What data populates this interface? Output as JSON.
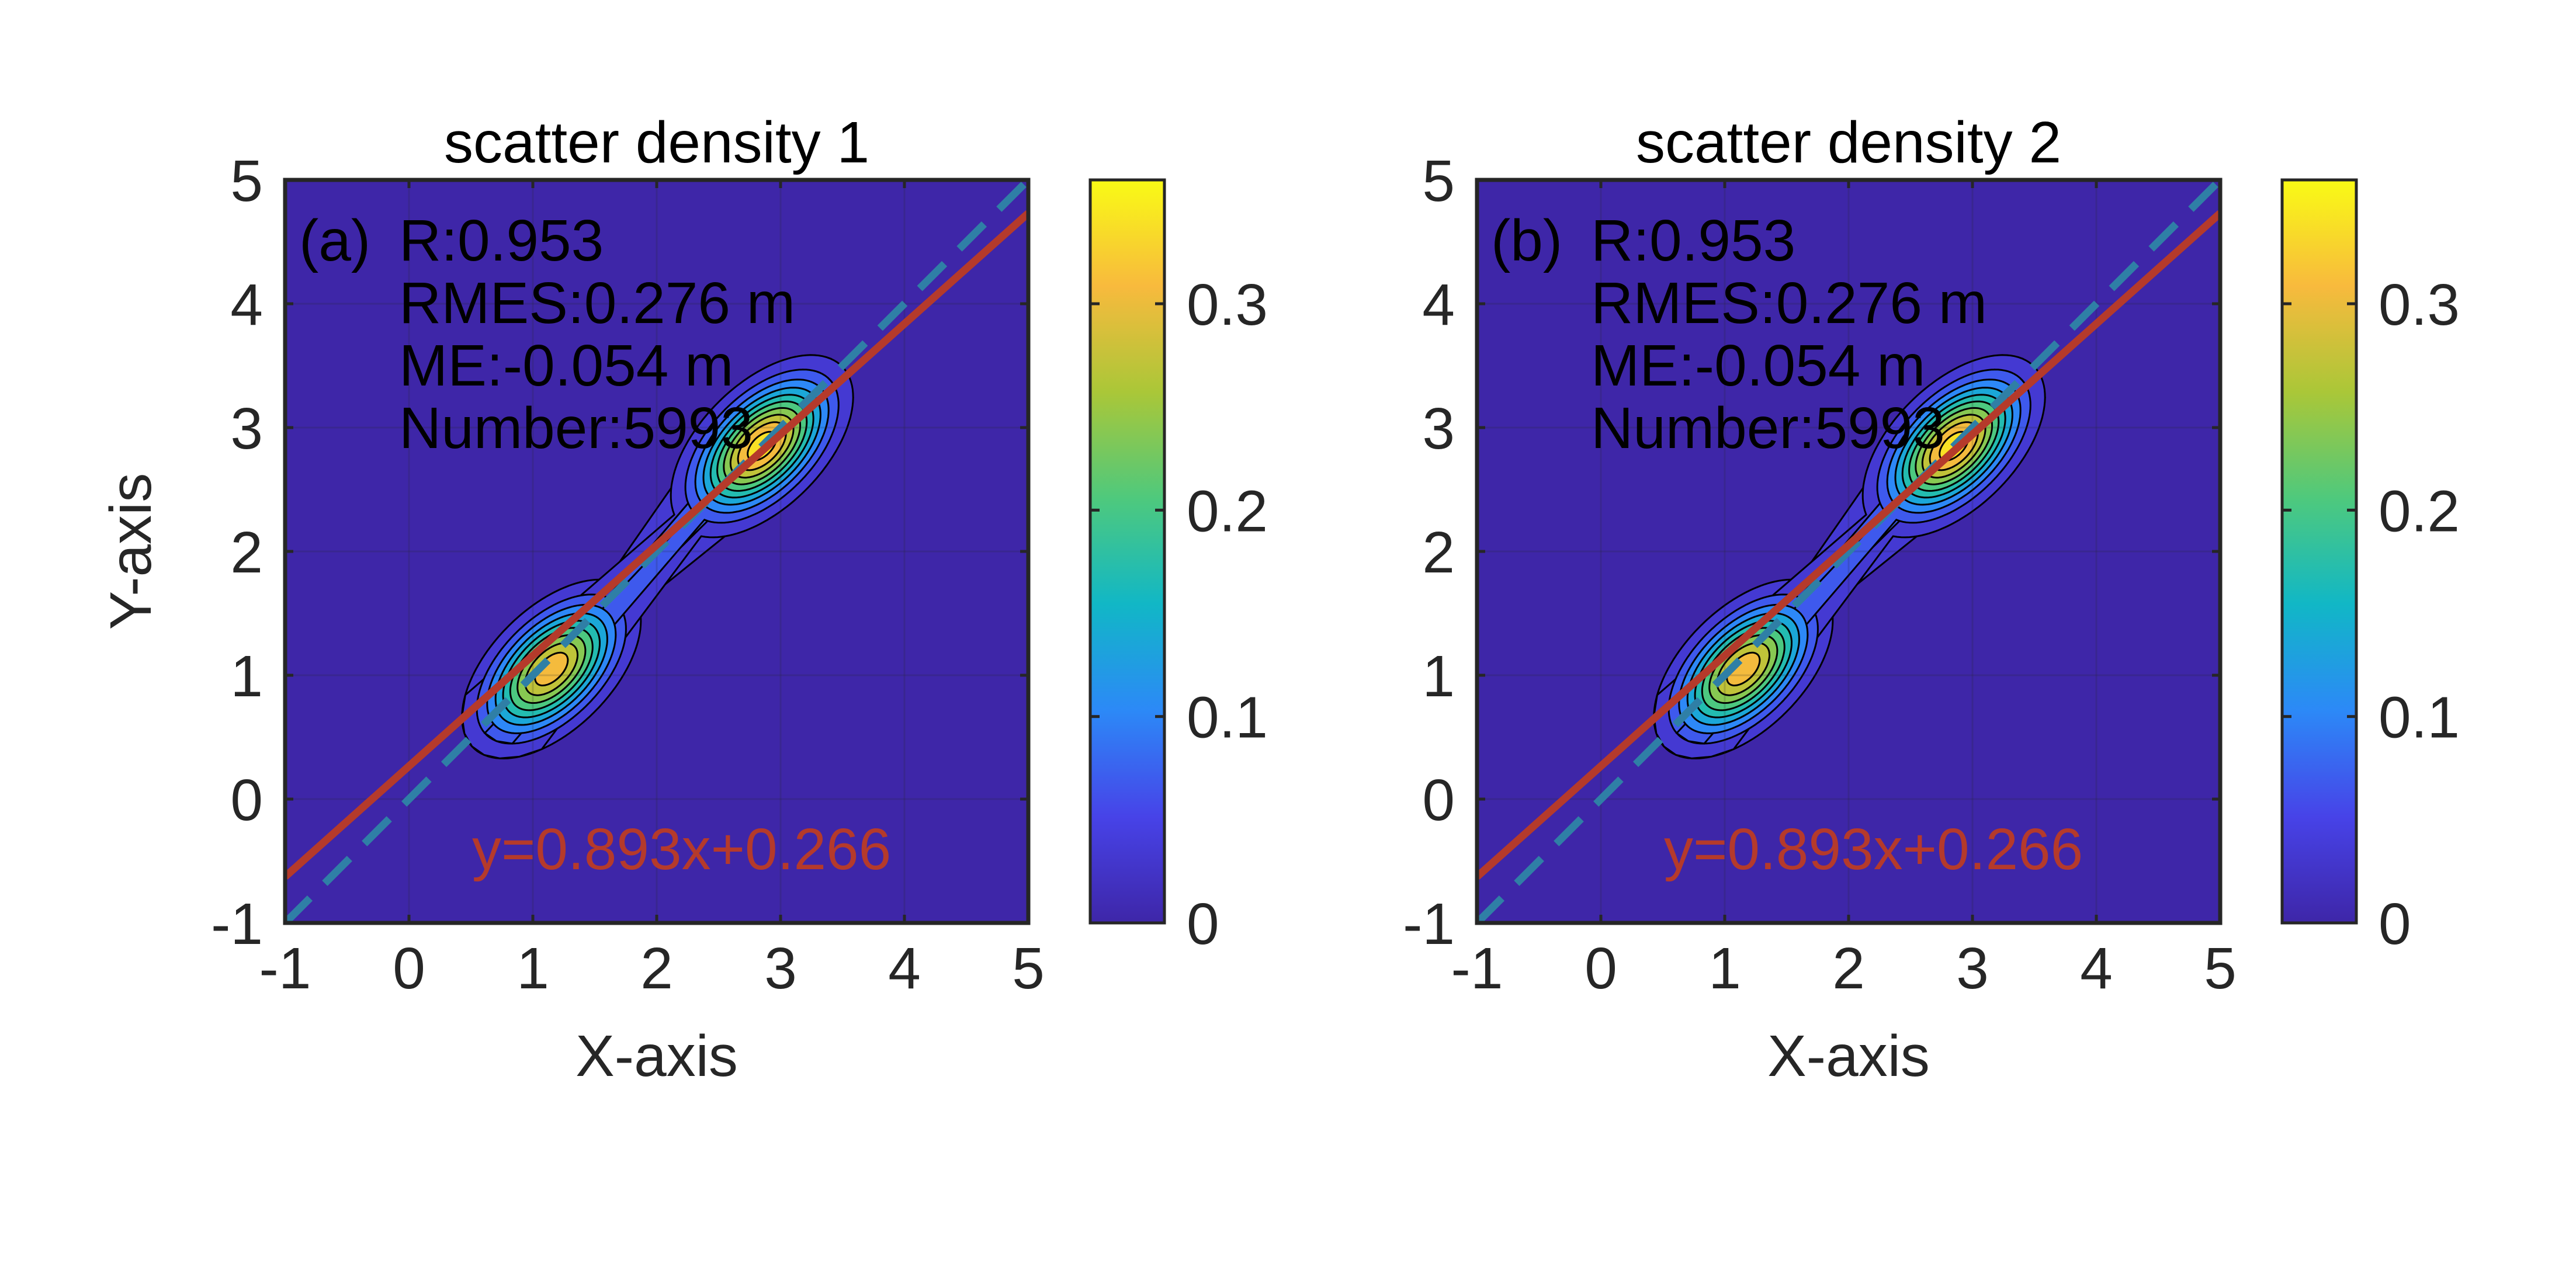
{
  "colors": {
    "background": "#3e26a8",
    "grid": "#262626",
    "contour": "#000000",
    "fit_line": "#b53a2b",
    "identity_line": "#2f7fa6",
    "colormap": [
      "#3e26a8",
      "#4743e8",
      "#2c89f7",
      "#11b7c6",
      "#4ec97d",
      "#aac738",
      "#f8ba3d",
      "#f9fb15"
    ]
  },
  "chart_data": [
    {
      "type": "heatmap",
      "panel": "(a)",
      "title": "scatter density 1",
      "xlabel": "X-axis",
      "ylabel": "Y-axis",
      "xlim": [
        -1,
        5
      ],
      "ylim": [
        -1,
        5
      ],
      "xticks": [
        "-1",
        "0",
        "1",
        "2",
        "3",
        "4",
        "5"
      ],
      "yticks": [
        "-1",
        "0",
        "1",
        "2",
        "3",
        "4",
        "5"
      ],
      "grid": true,
      "density_peaks": [
        {
          "x": 1.15,
          "y": 1.05,
          "peak": 0.33
        },
        {
          "x": 2.85,
          "y": 2.85,
          "peak": 0.36
        }
      ],
      "contour_count": 10,
      "fit": {
        "slope": 0.893,
        "intercept": 0.266
      },
      "identity_line": true,
      "stats": {
        "r": "R:0.953",
        "rmse": "RMES:0.276 m",
        "me": "ME:-0.054 m",
        "number": "Number:5993"
      },
      "equation": "y=0.893x+0.266",
      "colorbar": {
        "range": [
          0,
          0.36
        ],
        "ticks": [
          "0",
          "0.1",
          "0.2",
          "0.3"
        ]
      }
    },
    {
      "type": "heatmap",
      "panel": "(b)",
      "title": "scatter density 2",
      "xlabel": "X-axis",
      "ylabel": "",
      "xlim": [
        -1,
        5
      ],
      "ylim": [
        -1,
        5
      ],
      "xticks": [
        "-1",
        "0",
        "1",
        "2",
        "3",
        "4",
        "5"
      ],
      "yticks": [
        "-1",
        "0",
        "1",
        "2",
        "3",
        "4",
        "5"
      ],
      "grid": true,
      "density_peaks": [
        {
          "x": 1.15,
          "y": 1.05,
          "peak": 0.33
        },
        {
          "x": 2.85,
          "y": 2.85,
          "peak": 0.36
        }
      ],
      "contour_count": 10,
      "fit": {
        "slope": 0.893,
        "intercept": 0.266
      },
      "identity_line": true,
      "stats": {
        "r": "R:0.953",
        "rmse": "RMES:0.276 m",
        "me": "ME:-0.054 m",
        "number": "Number:5993"
      },
      "equation": "y=0.893x+0.266",
      "colorbar": {
        "range": [
          0,
          0.36
        ],
        "ticks": [
          "0",
          "0.1",
          "0.2",
          "0.3"
        ]
      }
    }
  ]
}
